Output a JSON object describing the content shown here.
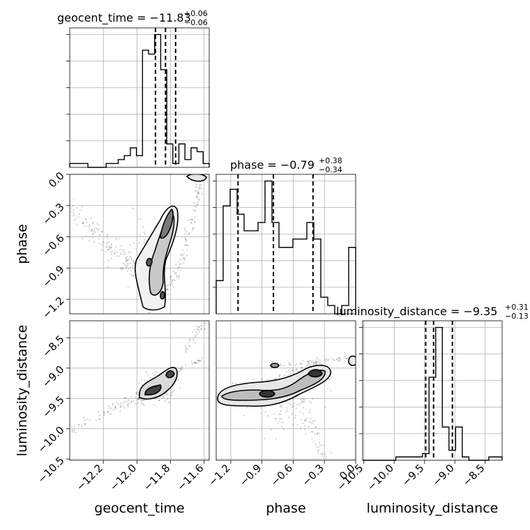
{
  "chart_data": {
    "type": "corner",
    "parameters": [
      "geocent_time",
      "phase",
      "luminosity_distance"
    ],
    "titles": {
      "geocent_time": {
        "prefix": "geocent_time = −11.83",
        "plus": "+0.06",
        "minus": "−0.06"
      },
      "phase": {
        "prefix": "phase = −0.79",
        "plus": "+0.38",
        "minus": "−0.34"
      },
      "luminosity_distance": {
        "prefix": "luminosity_distance = −9.35",
        "plus": "+0.31",
        "minus": "−0.13"
      }
    },
    "ranges": {
      "geocent_time": [
        -12.4,
        -11.57
      ],
      "phase": [
        -1.34,
        0.0
      ],
      "luminosity_distance": [
        -10.52,
        -8.22
      ]
    },
    "ticks": {
      "geocent_time": [
        "−12.2",
        "−12.0",
        "−11.8",
        "−11.6"
      ],
      "phase": [
        "−1.2",
        "−0.9",
        "−0.6",
        "−0.3",
        "0.0"
      ],
      "luminosity_distance_x": [
        "−10.5",
        "−10.0",
        "−9.5",
        "−9.0",
        "−8.5"
      ],
      "luminosity_distance_y": [
        "−8.5",
        "−9.0",
        "−9.5",
        "−10.0",
        "−10.5"
      ],
      "phase_y": [
        "0.0",
        "−0.3",
        "−0.6",
        "−0.9",
        "−1.2"
      ]
    },
    "tick_values": {
      "geocent_time": [
        -12.2,
        -12.0,
        -11.8,
        -11.6
      ],
      "phase": [
        -1.2,
        -0.9,
        -0.6,
        -0.3,
        0.0
      ],
      "luminosity_distance": [
        -10.5,
        -10.0,
        -9.5,
        -9.0,
        -8.5
      ]
    },
    "quantiles": {
      "geocent_time": [
        -11.89,
        -11.83,
        -11.77
      ],
      "phase": [
        -1.13,
        -0.79,
        -0.41
      ],
      "luminosity_distance": [
        -9.48,
        -9.35,
        -9.04
      ]
    },
    "histograms": {
      "geocent_time": {
        "edges_range": [
          -12.4,
          -11.57
        ],
        "counts": [
          1,
          1,
          1,
          0,
          0,
          0,
          1,
          1,
          2,
          3,
          5,
          3,
          30,
          29,
          34,
          25,
          6,
          1,
          6,
          2,
          5,
          4,
          1
        ]
      },
      "phase": {
        "edges_range": [
          -1.34,
          0.0
        ],
        "counts": [
          4,
          13,
          15,
          12,
          10,
          10,
          11,
          16,
          11,
          8,
          8,
          9,
          9,
          11,
          9,
          2,
          1,
          0,
          1,
          8
        ]
      },
      "luminosity_distance": {
        "edges_range": [
          -10.52,
          -8.22
        ],
        "counts": [
          0,
          0,
          0,
          0,
          0,
          1,
          1,
          1,
          1,
          2,
          25,
          40,
          10,
          3,
          10,
          1,
          0,
          0,
          0,
          1,
          1
        ]
      }
    },
    "axis_labels": {
      "x": [
        "geocent_time",
        "phase",
        "luminosity_distance"
      ],
      "y": [
        "phase",
        "luminosity_distance"
      ]
    },
    "grid": true
  }
}
